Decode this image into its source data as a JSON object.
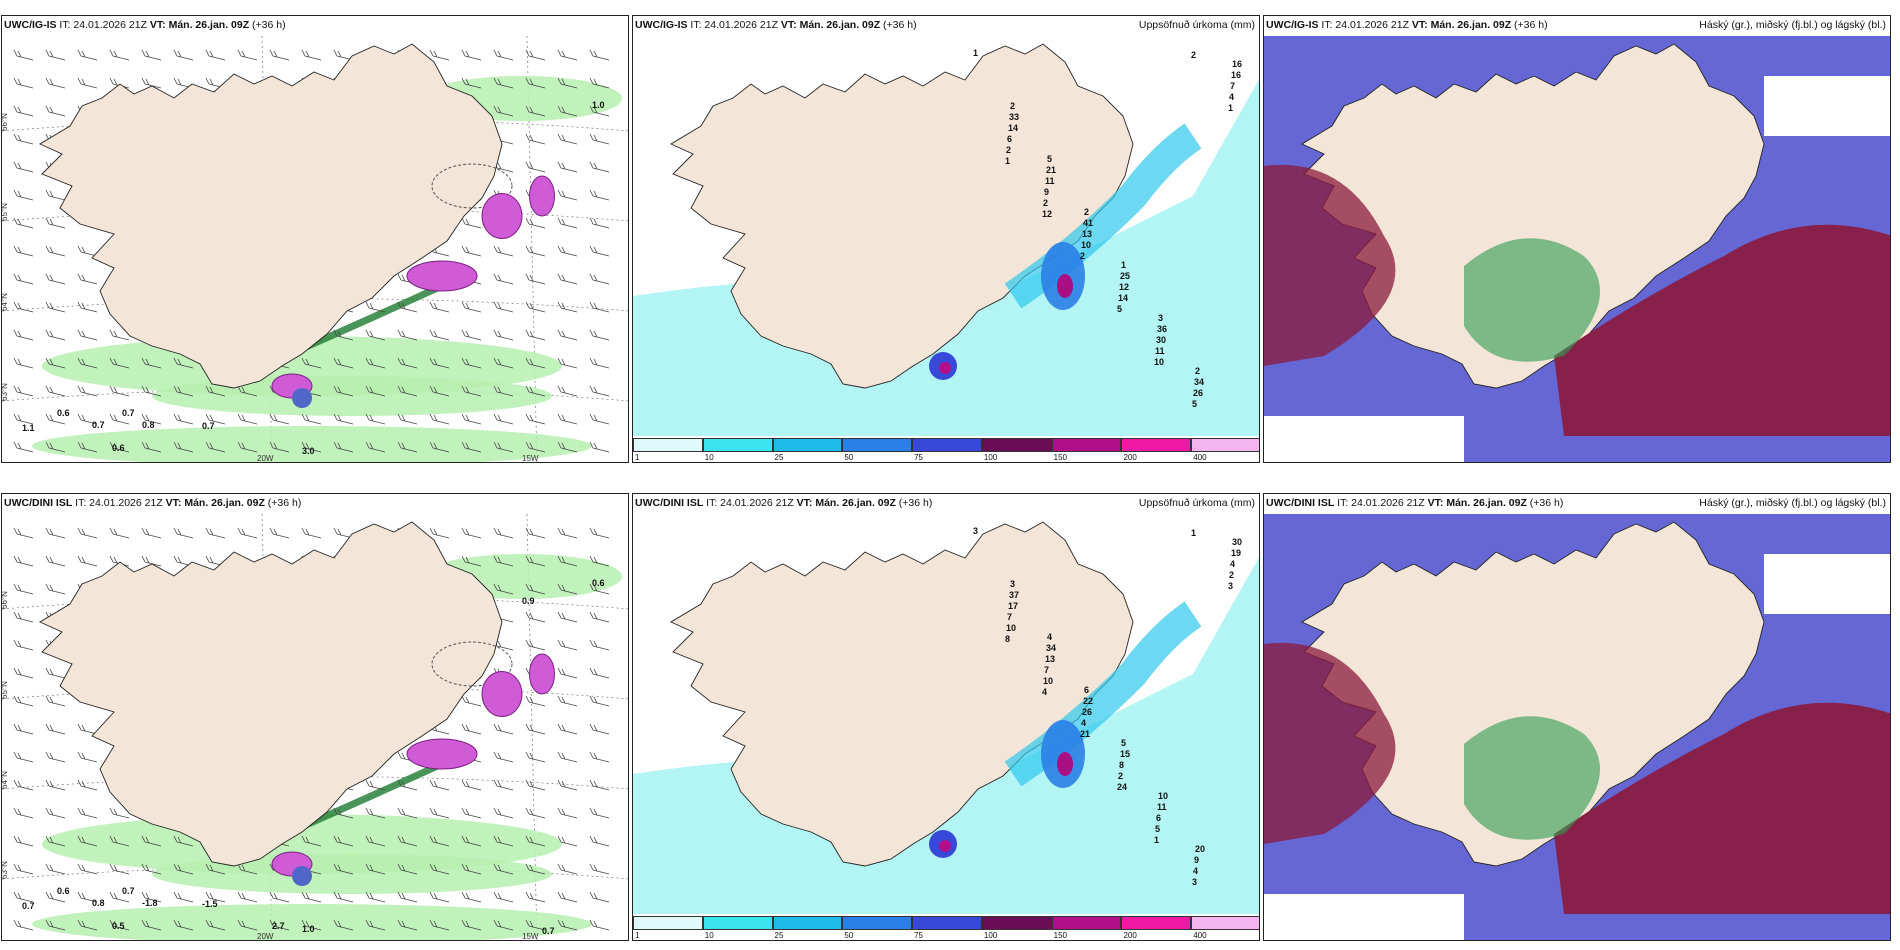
{
  "panels": [
    {
      "id": "p1",
      "model": "UWC/IG-IS",
      "it": "IT: 24.01.2026 21Z",
      "vt_label": "VT:",
      "vt": "Mán. 26.jan. 09Z",
      "lead": "(+36 h)",
      "right_title": "",
      "type": "wind",
      "values": [
        "0.6",
        "0.7",
        "1.1",
        "0.7",
        "0.8",
        "0.7",
        "0.6",
        "3.0",
        "1.0"
      ],
      "lat_labels": [
        "66°N",
        "65°N",
        "64°N",
        "63°N"
      ],
      "lon_labels": [
        "20W",
        "15W"
      ]
    },
    {
      "id": "p2",
      "model": "UWC/IG-IS",
      "it": "IT: 24.01.2026 21Z",
      "vt_label": "VT:",
      "vt": "Mán. 26.jan. 09Z",
      "lead": "(+36 h)",
      "right_title": "Uppsöfnuð úrkoma (mm)",
      "type": "precip",
      "values": [
        "1",
        "2",
        "5",
        "2",
        "1",
        "3",
        "2",
        "16",
        "33",
        "21",
        "41",
        "25",
        "36",
        "34",
        "16",
        "14",
        "11",
        "13",
        "12",
        "30",
        "26",
        "7",
        "6",
        "9",
        "10",
        "14",
        "11",
        "5",
        "4",
        "2",
        "2",
        "2",
        "5",
        "10",
        "2",
        "1",
        "1",
        "12"
      ]
    },
    {
      "id": "p3",
      "model": "UWC/IG-IS",
      "it": "IT: 24.01.2026 21Z",
      "vt_label": "VT:",
      "vt": "Mán. 26.jan. 09Z",
      "lead": "(+36 h)",
      "right_title": "Háský (gr.), miðský (fj.bl.) og lágský (bl.)",
      "type": "cloud",
      "values": []
    },
    {
      "id": "p4",
      "model": "UWC/DINI ISL",
      "it": "IT: 24.01.2026 21Z",
      "vt_label": "VT:",
      "vt": "Mán. 26.jan. 09Z",
      "lead": "(+36 h)",
      "right_title": "",
      "type": "wind",
      "values": [
        "0.6",
        "0.7",
        "0.7",
        "0.8",
        "-1.8",
        "-1.5",
        "0.5",
        "1.0",
        "0.6",
        "0.9",
        "0.7",
        "2.7"
      ],
      "lat_labels": [
        "66°N",
        "65°N",
        "64°N",
        "63°N"
      ],
      "lon_labels": [
        "20W",
        "15W"
      ]
    },
    {
      "id": "p5",
      "model": "UWC/DINI ISL",
      "it": "IT: 24.01.2026 21Z",
      "vt_label": "VT:",
      "vt": "Mán. 26.jan. 09Z",
      "lead": "(+36 h)",
      "right_title": "Uppsöfnuð úrkoma (mm)",
      "type": "precip",
      "values": [
        "3",
        "3",
        "4",
        "6",
        "5",
        "10",
        "20",
        "30",
        "37",
        "34",
        "22",
        "15",
        "11",
        "9",
        "19",
        "17",
        "13",
        "26",
        "8",
        "6",
        "4",
        "4",
        "7",
        "7",
        "4",
        "2",
        "5",
        "3",
        "2",
        "10",
        "10",
        "21",
        "24",
        "1",
        "1",
        "3",
        "8",
        "4"
      ]
    },
    {
      "id": "p6",
      "model": "UWC/DINI ISL",
      "it": "IT: 24.01.2026 21Z",
      "vt_label": "VT:",
      "vt": "Mán. 26.jan. 09Z",
      "lead": "(+36 h)",
      "right_title": "Háský (gr.), miðský (fj.bl.) og lágský (bl.)",
      "type": "cloud",
      "values": []
    }
  ],
  "legend": {
    "ticks": [
      "1",
      "10",
      "25",
      "50",
      "75",
      "100",
      "150",
      "200",
      "400"
    ],
    "colors": [
      "#dff9fb",
      "#38e4ee",
      "#1dbce8",
      "#2a80e6",
      "#3848d8",
      "#6a0c56",
      "#b20e8a",
      "#ee1aa6",
      "#f4b4ee"
    ]
  },
  "colors": {
    "land": "#f3e6d8",
    "sea_precip": "#b3f4f4",
    "high_cloud": "#2e9a52",
    "mid_cloud": "#8b1a3c",
    "low_cloud": "#4a4dcc",
    "wind_green": "#b7f0b0"
  }
}
